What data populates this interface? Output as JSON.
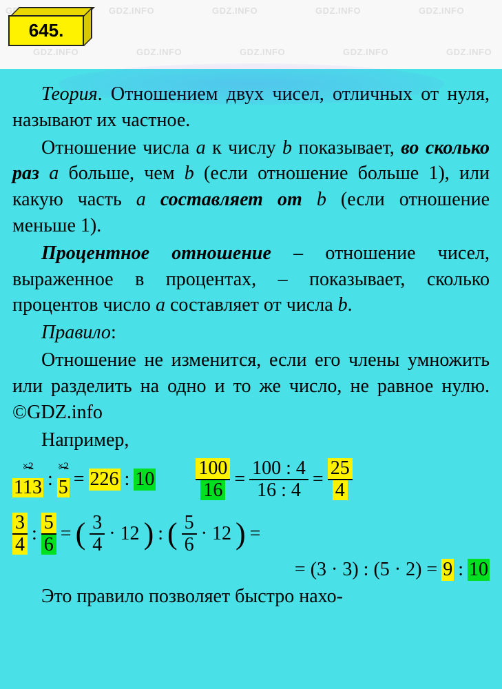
{
  "watermark_text": "GDZ.INFO",
  "watermark_color": "rgba(150,150,150,0.25)",
  "badge": {
    "number": "645."
  },
  "colors": {
    "badge_bg": "#fff200",
    "content_bg": "#49e0e8",
    "highlight_yellow": "#fff200",
    "highlight_green": "#00e020",
    "text": "#000000"
  },
  "typography": {
    "body_fontsize": 28,
    "badge_fontsize": 26,
    "watermark_fontsize": 13
  },
  "theory": {
    "label": "Теория",
    "p1_a": ". Отношением двух чисел, от­личных от нуля, называют их частное.",
    "p2_a": "Отношение числа ",
    "var_a": "a",
    "p2_b": " к числу ",
    "var_b": "b",
    "p2_c": " показы­вает, ",
    "p2_bold1": "во сколько раз",
    "p2_d": " ",
    "p2_e": " больше, чем ",
    "p2_f": " (если отношение больше 1), или какую часть ",
    "p2_bold2": "составляет от",
    "p2_g": " ",
    "p2_h": " (если отноше­ние меньше 1).",
    "p3_bold": "Процентное отношение",
    "p3_a": " – отноше­ние чисел, выраженное в процентах, – по­казывает, сколько процентов число ",
    "p3_b": " со­ставляет от числа ",
    "p3_c": "."
  },
  "rule": {
    "label": "Правило",
    "colon": ":",
    "text_a": "Отношение не изменится, если его члены умножить или разделить на одно и то же число, не равное нулю. ",
    "copyright": "©GDZ.info"
  },
  "example": {
    "label": "Например,",
    "eq1": {
      "a_annot": "×2",
      "a": "113",
      "b_annot": "×2",
      "b": "5",
      "c": "226",
      "d": "10"
    },
    "eq2": {
      "f1_num": "100",
      "f1_den": "16",
      "f2_num": "100 : 4",
      "f2_den": "16 : 4",
      "f3_num": "25",
      "f3_den": "4"
    },
    "eq3": {
      "f1_num": "3",
      "f1_den": "4",
      "f2_num": "5",
      "f2_den": "6",
      "p1_f_num": "3",
      "p1_f_den": "4",
      "p1_mul": "· 12",
      "p2_f_num": "5",
      "p2_f_den": "6",
      "p2_mul": "· 12",
      "result_a": "= (3 · 3) : (5 · 2) = ",
      "r1": "9",
      "r2": "10"
    },
    "tail": "Это правило позволяет быстро нахо-"
  }
}
